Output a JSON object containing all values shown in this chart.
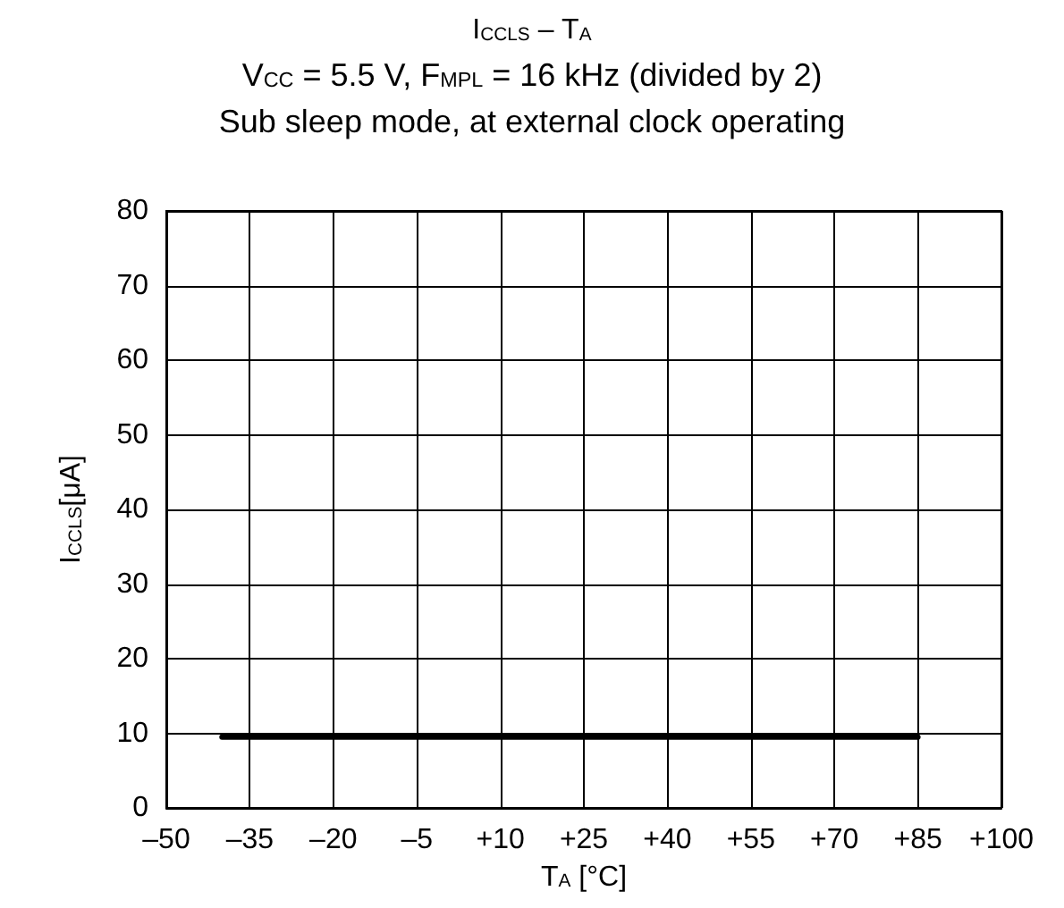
{
  "chart_data": {
    "type": "line",
    "title": "I$_{CCLS}$ – T$_{A}$",
    "subtitle": "V$_{CC}$ = 5.5 V, F$_{MPL}$ = 16 kHz (divided by 2)\nSub sleep mode, at external clock operating",
    "xlabel": "T$_{A}$ [°C]",
    "ylabel": "I$_{CCLS}$[μA]",
    "x": [
      -40,
      85
    ],
    "series": [
      {
        "color": "#000000",
        "values": [
          9.5,
          9.5
        ]
      }
    ],
    "xlim": [
      -50,
      100
    ],
    "xticks": [
      {
        "value": -50,
        "label": "–50"
      },
      {
        "value": -35,
        "label": "–35"
      },
      {
        "value": -20,
        "label": "–20"
      },
      {
        "value": -5,
        "label": "–5"
      },
      {
        "value": 10,
        "label": "+10"
      },
      {
        "value": 25,
        "label": "+25"
      },
      {
        "value": 40,
        "label": "+40"
      },
      {
        "value": 55,
        "label": "+55"
      },
      {
        "value": 70,
        "label": "+70"
      },
      {
        "value": 85,
        "label": "+85"
      },
      {
        "value": 100,
        "label": "+100"
      }
    ],
    "ylim": [
      0,
      80
    ],
    "yticks": [
      0,
      10,
      20,
      30,
      40,
      50,
      60,
      70,
      80
    ],
    "grid": true,
    "marker": "none",
    "line_style": "solid"
  }
}
